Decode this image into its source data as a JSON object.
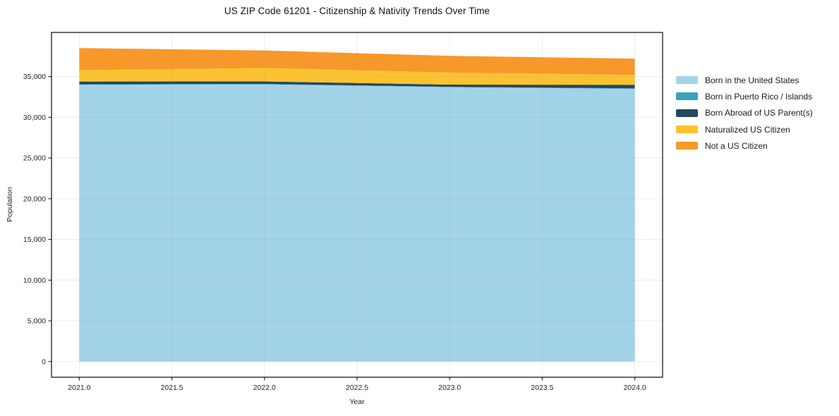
{
  "title": "US ZIP Code 61201 - Citizenship & Nativity Trends Over Time",
  "chart_data": {
    "type": "area",
    "stacked": true,
    "title": "US ZIP Code 61201 - Citizenship & Nativity Trends Over Time",
    "xlabel": "Year",
    "ylabel": "Population",
    "x": [
      2021,
      2022,
      2023,
      2024
    ],
    "series": [
      {
        "name": "Born in the United States",
        "color": "#a3d3e8",
        "values": [
          34000,
          34050,
          33700,
          33500
        ]
      },
      {
        "name": "Born in Puerto Rico / Islands",
        "color": "#3a9fc0",
        "values": [
          50,
          55,
          50,
          60
        ]
      },
      {
        "name": "Born Abroad of US Parent(s)",
        "color": "#24485e",
        "values": [
          350,
          300,
          270,
          430
        ]
      },
      {
        "name": "Naturalized US Citizen",
        "color": "#fcc32f",
        "values": [
          1400,
          1650,
          1480,
          1210
        ]
      },
      {
        "name": "Not a US Citizen",
        "color": "#f7982a",
        "values": [
          2700,
          2150,
          2050,
          2000
        ]
      }
    ],
    "totals": [
      38500,
      38205,
      37550,
      37200
    ],
    "xlim": [
      2020.85,
      2024.15
    ],
    "ylim": [
      -1925,
      40425
    ],
    "xticks": [
      2021.0,
      2021.5,
      2022.0,
      2022.5,
      2023.0,
      2023.5,
      2024.0
    ],
    "yticks": [
      0,
      5000,
      10000,
      15000,
      20000,
      25000,
      30000,
      35000
    ],
    "grid": true,
    "legend_position": "center right outside",
    "colors": {
      "spine": "#1a1a1a",
      "grid": "#999999",
      "tick_label": "#262626",
      "background": "#ffffff"
    }
  }
}
